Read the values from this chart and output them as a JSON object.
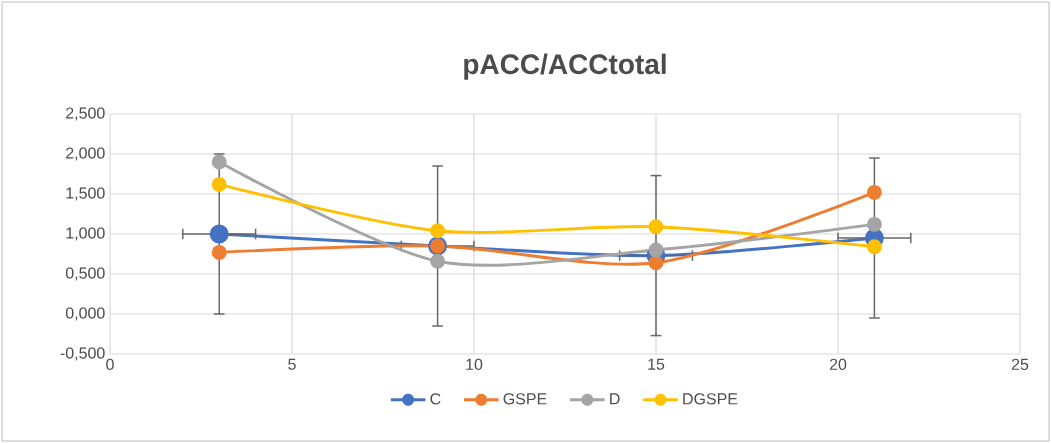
{
  "chart_data": {
    "type": "line",
    "title": "pACC/ACCtotal",
    "x": [
      3,
      9,
      15,
      21
    ],
    "series": [
      {
        "name": "C",
        "color": "#4472c4",
        "values": [
          1.0,
          0.85,
          0.73,
          0.95
        ],
        "errors": [
          1.0,
          1.0,
          1.0,
          1.0
        ],
        "xerrors": [
          1,
          1,
          1,
          1
        ]
      },
      {
        "name": "GSPE",
        "color": "#ed7d31",
        "values": [
          0.77,
          0.85,
          0.64,
          1.52
        ]
      },
      {
        "name": "D",
        "color": "#a5a5a5",
        "values": [
          1.9,
          0.66,
          0.8,
          1.12
        ]
      },
      {
        "name": "DGSPE",
        "color": "#ffc000",
        "values": [
          1.62,
          1.04,
          1.09,
          0.84
        ]
      }
    ],
    "xlim": [
      0,
      25
    ],
    "xticks": [
      0,
      5,
      10,
      15,
      20,
      25
    ],
    "ylim": [
      -0.5,
      2.5
    ],
    "yticks": [
      {
        "value": -0.5,
        "label": "-0,500"
      },
      {
        "value": 0,
        "label": "0,000"
      },
      {
        "value": 0.5,
        "label": "0,500"
      },
      {
        "value": 1,
        "label": "1,000"
      },
      {
        "value": 1.5,
        "label": "1,500"
      },
      {
        "value": 2,
        "label": "2,000"
      },
      {
        "value": 2.5,
        "label": "2,500"
      }
    ],
    "grid": true,
    "legend": "bottom",
    "marker": "circle"
  }
}
